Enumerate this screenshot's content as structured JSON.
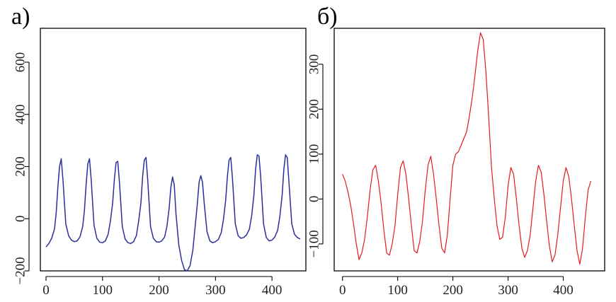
{
  "chart_data": [
    {
      "type": "line",
      "panel_label": "а)",
      "color": "#2b2f9a",
      "xlim": [
        -10,
        460
      ],
      "ylim": [
        -200,
        730
      ],
      "xticks": [
        0,
        100,
        200,
        300,
        400
      ],
      "yticks": [
        -200,
        0,
        200,
        400,
        600
      ],
      "ytick_labels": [
        "−200",
        "0",
        "200",
        "400",
        "600"
      ],
      "series": [
        {
          "x": [
            0,
            5,
            10,
            15,
            18,
            21,
            24,
            27,
            30,
            35,
            40,
            45,
            50,
            55,
            60,
            65,
            68,
            71,
            74,
            77,
            80,
            85,
            90,
            95,
            100,
            105,
            110,
            114,
            118,
            121,
            124,
            127,
            130,
            135,
            140,
            145,
            150,
            155,
            160,
            164,
            168,
            171,
            174,
            177,
            180,
            185,
            190,
            195,
            200,
            205,
            210,
            214,
            218,
            221,
            224,
            227,
            230,
            235,
            240,
            245,
            250,
            255,
            260,
            264,
            268,
            271,
            274,
            277,
            280,
            285,
            290,
            295,
            300,
            305,
            310,
            314,
            318,
            321,
            324,
            327,
            330,
            335,
            340,
            345,
            350,
            355,
            360,
            364,
            368,
            371,
            374,
            377,
            380,
            385,
            390,
            395,
            400,
            405,
            410,
            414,
            418,
            421,
            424,
            427,
            430,
            435,
            440,
            445,
            450
          ],
          "y": [
            -108,
            -95,
            -75,
            -40,
            20,
            120,
            200,
            230,
            150,
            -20,
            -65,
            -82,
            -88,
            -85,
            -70,
            -30,
            30,
            130,
            210,
            230,
            150,
            -25,
            -75,
            -90,
            -92,
            -85,
            -60,
            -10,
            60,
            150,
            215,
            220,
            140,
            -30,
            -78,
            -92,
            -95,
            -88,
            -65,
            -10,
            60,
            160,
            225,
            235,
            150,
            -30,
            -75,
            -88,
            -90,
            -85,
            -70,
            -30,
            40,
            120,
            160,
            130,
            20,
            -100,
            -160,
            -195,
            -200,
            -180,
            -120,
            -30,
            60,
            140,
            165,
            140,
            60,
            -50,
            -85,
            -92,
            -88,
            -80,
            -55,
            -5,
            70,
            160,
            225,
            235,
            155,
            -20,
            -65,
            -75,
            -72,
            -62,
            -40,
            10,
            90,
            190,
            245,
            240,
            160,
            -20,
            -72,
            -85,
            -82,
            -70,
            -45,
            10,
            90,
            190,
            245,
            235,
            140,
            -20,
            -60,
            -72,
            -78
          ]
        }
      ]
    },
    {
      "type": "line",
      "panel_label": "б)",
      "color": "#e41a1c",
      "xlim": [
        -15,
        475
      ],
      "ylim": [
        -160,
        380
      ],
      "xticks": [
        0,
        100,
        200,
        300,
        400
      ],
      "yticks": [
        -100,
        0,
        100,
        200,
        300
      ],
      "ytick_labels": [
        "−100",
        "0",
        "100",
        "200",
        "300"
      ],
      "series": [
        {
          "x": [
            0,
            5,
            10,
            15,
            20,
            25,
            30,
            35,
            40,
            45,
            50,
            55,
            60,
            65,
            70,
            75,
            80,
            85,
            90,
            95,
            100,
            105,
            110,
            115,
            120,
            125,
            130,
            135,
            140,
            145,
            150,
            155,
            160,
            165,
            170,
            175,
            180,
            185,
            190,
            195,
            200,
            205,
            210,
            215,
            220,
            225,
            230,
            235,
            240,
            245,
            250,
            255,
            260,
            265,
            270,
            275,
            280,
            285,
            290,
            295,
            300,
            305,
            310,
            315,
            320,
            325,
            330,
            335,
            340,
            345,
            350,
            355,
            360,
            365,
            370,
            375,
            380,
            385,
            390,
            395,
            400,
            405,
            410,
            415,
            420,
            425,
            430,
            435,
            440,
            445,
            450
          ],
          "y": [
            55,
            40,
            15,
            -15,
            -55,
            -100,
            -135,
            -120,
            -90,
            -40,
            20,
            65,
            75,
            40,
            -10,
            -70,
            -120,
            -125,
            -100,
            -60,
            10,
            70,
            85,
            55,
            0,
            -60,
            -115,
            -120,
            -95,
            -50,
            20,
            75,
            95,
            55,
            0,
            -60,
            -110,
            -120,
            -80,
            0,
            75,
            100,
            105,
            120,
            135,
            150,
            185,
            225,
            275,
            330,
            370,
            355,
            280,
            180,
            70,
            0,
            -60,
            -90,
            -85,
            -40,
            30,
            70,
            55,
            0,
            -60,
            -110,
            -130,
            -115,
            -80,
            -20,
            40,
            75,
            60,
            10,
            -50,
            -105,
            -140,
            -125,
            -80,
            -20,
            40,
            70,
            50,
            0,
            -60,
            -115,
            -145,
            -110,
            -40,
            20,
            40
          ]
        }
      ]
    }
  ]
}
